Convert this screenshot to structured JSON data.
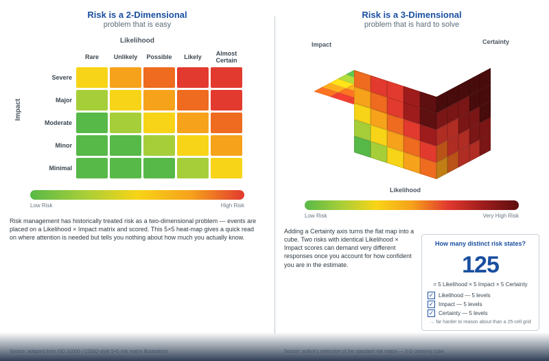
{
  "colors": {
    "green": "#57b947",
    "yellowgreen": "#a6ce39",
    "yellow": "#f7d417",
    "orange": "#f6a21b",
    "deeporange": "#ee6b1f",
    "red": "#e23a2e",
    "darkred": "#9e1c1c",
    "maroon": "#5e0f0f",
    "title": "#1a4fa0"
  },
  "left": {
    "title_line1": "Risk is a 2-Dimensional",
    "title_line2": "problem that is easy",
    "likelihood_label": "Likelihood",
    "impact_label": "Impact",
    "likelihood": [
      "Rare",
      "Unlikely",
      "Possible",
      "Likely",
      "Almost Certain"
    ],
    "impact": [
      "Severe",
      "Major",
      "Moderate",
      "Minor",
      "Minimal"
    ],
    "cells": [
      [
        "yellow",
        "orange",
        "deeporange",
        "red",
        "red"
      ],
      [
        "yellowgreen",
        "yellow",
        "orange",
        "deeporange",
        "red"
      ],
      [
        "green",
        "yellowgreen",
        "yellow",
        "orange",
        "deeporange"
      ],
      [
        "green",
        "green",
        "yellowgreen",
        "yellow",
        "orange"
      ],
      [
        "green",
        "green",
        "green",
        "yellowgreen",
        "yellow"
      ]
    ],
    "grad_stops": [
      "#57b947",
      "#a6ce39",
      "#f7d417",
      "#f6a21b",
      "#e23a2e"
    ],
    "grad_low": "Low Risk",
    "grad_high": "High Risk",
    "desc": "Risk management has historically treated risk as a two-dimensional problem — events are placed on a Likelihood × Impact matrix and scored. This 5×5 heat-map gives a quick read on where attention is needed but tells you nothing about how much you actually know.",
    "src": "Source: adapted from ISO 31000 / COSO-style 5×5 risk matrix illustrations."
  },
  "right": {
    "title_line1": "Risk is a 3-Dimensional",
    "title_line2": "problem that is hard to solve",
    "ax_likelihood": "Likelihood",
    "ax_impact": "Impact",
    "ax_cert": "Certainty",
    "front": [
      [
        "deeporange",
        "red",
        "red",
        "darkred",
        "maroon"
      ],
      [
        "orange",
        "deeporange",
        "red",
        "darkred",
        "maroon"
      ],
      [
        "yellow",
        "orange",
        "deeporange",
        "red",
        "darkred"
      ],
      [
        "yellowgreen",
        "yellow",
        "orange",
        "deeporange",
        "red"
      ],
      [
        "green",
        "yellowgreen",
        "yellow",
        "orange",
        "deeporange"
      ]
    ],
    "top": [
      [
        "deeporange",
        "red",
        "red",
        "darkred",
        "maroon"
      ],
      [
        "orange",
        "deeporange",
        "red",
        "red",
        "darkred"
      ],
      [
        "yellow",
        "orange",
        "deeporange",
        "red",
        "darkred"
      ],
      [
        "yellowgreen",
        "yellow",
        "orange",
        "deeporange",
        "red"
      ],
      [
        "green",
        "yellowgreen",
        "yellow",
        "orange",
        "deeporange"
      ]
    ],
    "side": [
      [
        "maroon",
        "maroon",
        "maroon",
        "maroon",
        "maroon"
      ],
      [
        "darkred",
        "darkred",
        "darkred",
        "maroon",
        "maroon"
      ],
      [
        "red",
        "red",
        "darkred",
        "darkred",
        "maroon"
      ],
      [
        "deeporange",
        "red",
        "red",
        "darkred",
        "darkred"
      ],
      [
        "orange",
        "deeporange",
        "red",
        "red",
        "darkred"
      ]
    ],
    "grad_stops": [
      "#57b947",
      "#a6ce39",
      "#f7d417",
      "#f6a21b",
      "#e23a2e",
      "#9e1c1c",
      "#5e0f0f"
    ],
    "grad_low": "Low Risk",
    "grad_high": "Very High Risk",
    "desc": "Adding a Certainty axis turns the flat map into a cube. Two risks with identical Likelihood × Impact scores can demand very different responses once you account for how confident you are in the estimate.",
    "src": "Source: author's extension of the standard risk matrix — 3-D certainty cube.",
    "card": {
      "title": "How many distinct risk states?",
      "big": "125",
      "formula": "= 5 Likelihood × 5 Impact × 5 Certainty",
      "items": [
        {
          "checked": true,
          "label": "Likelihood — 5 levels"
        },
        {
          "checked": true,
          "label": "Impact — 5 levels"
        },
        {
          "checked": true,
          "label": "Certainty — 5 levels"
        }
      ],
      "foot": "→ far harder to reason about than a 25-cell grid"
    }
  }
}
